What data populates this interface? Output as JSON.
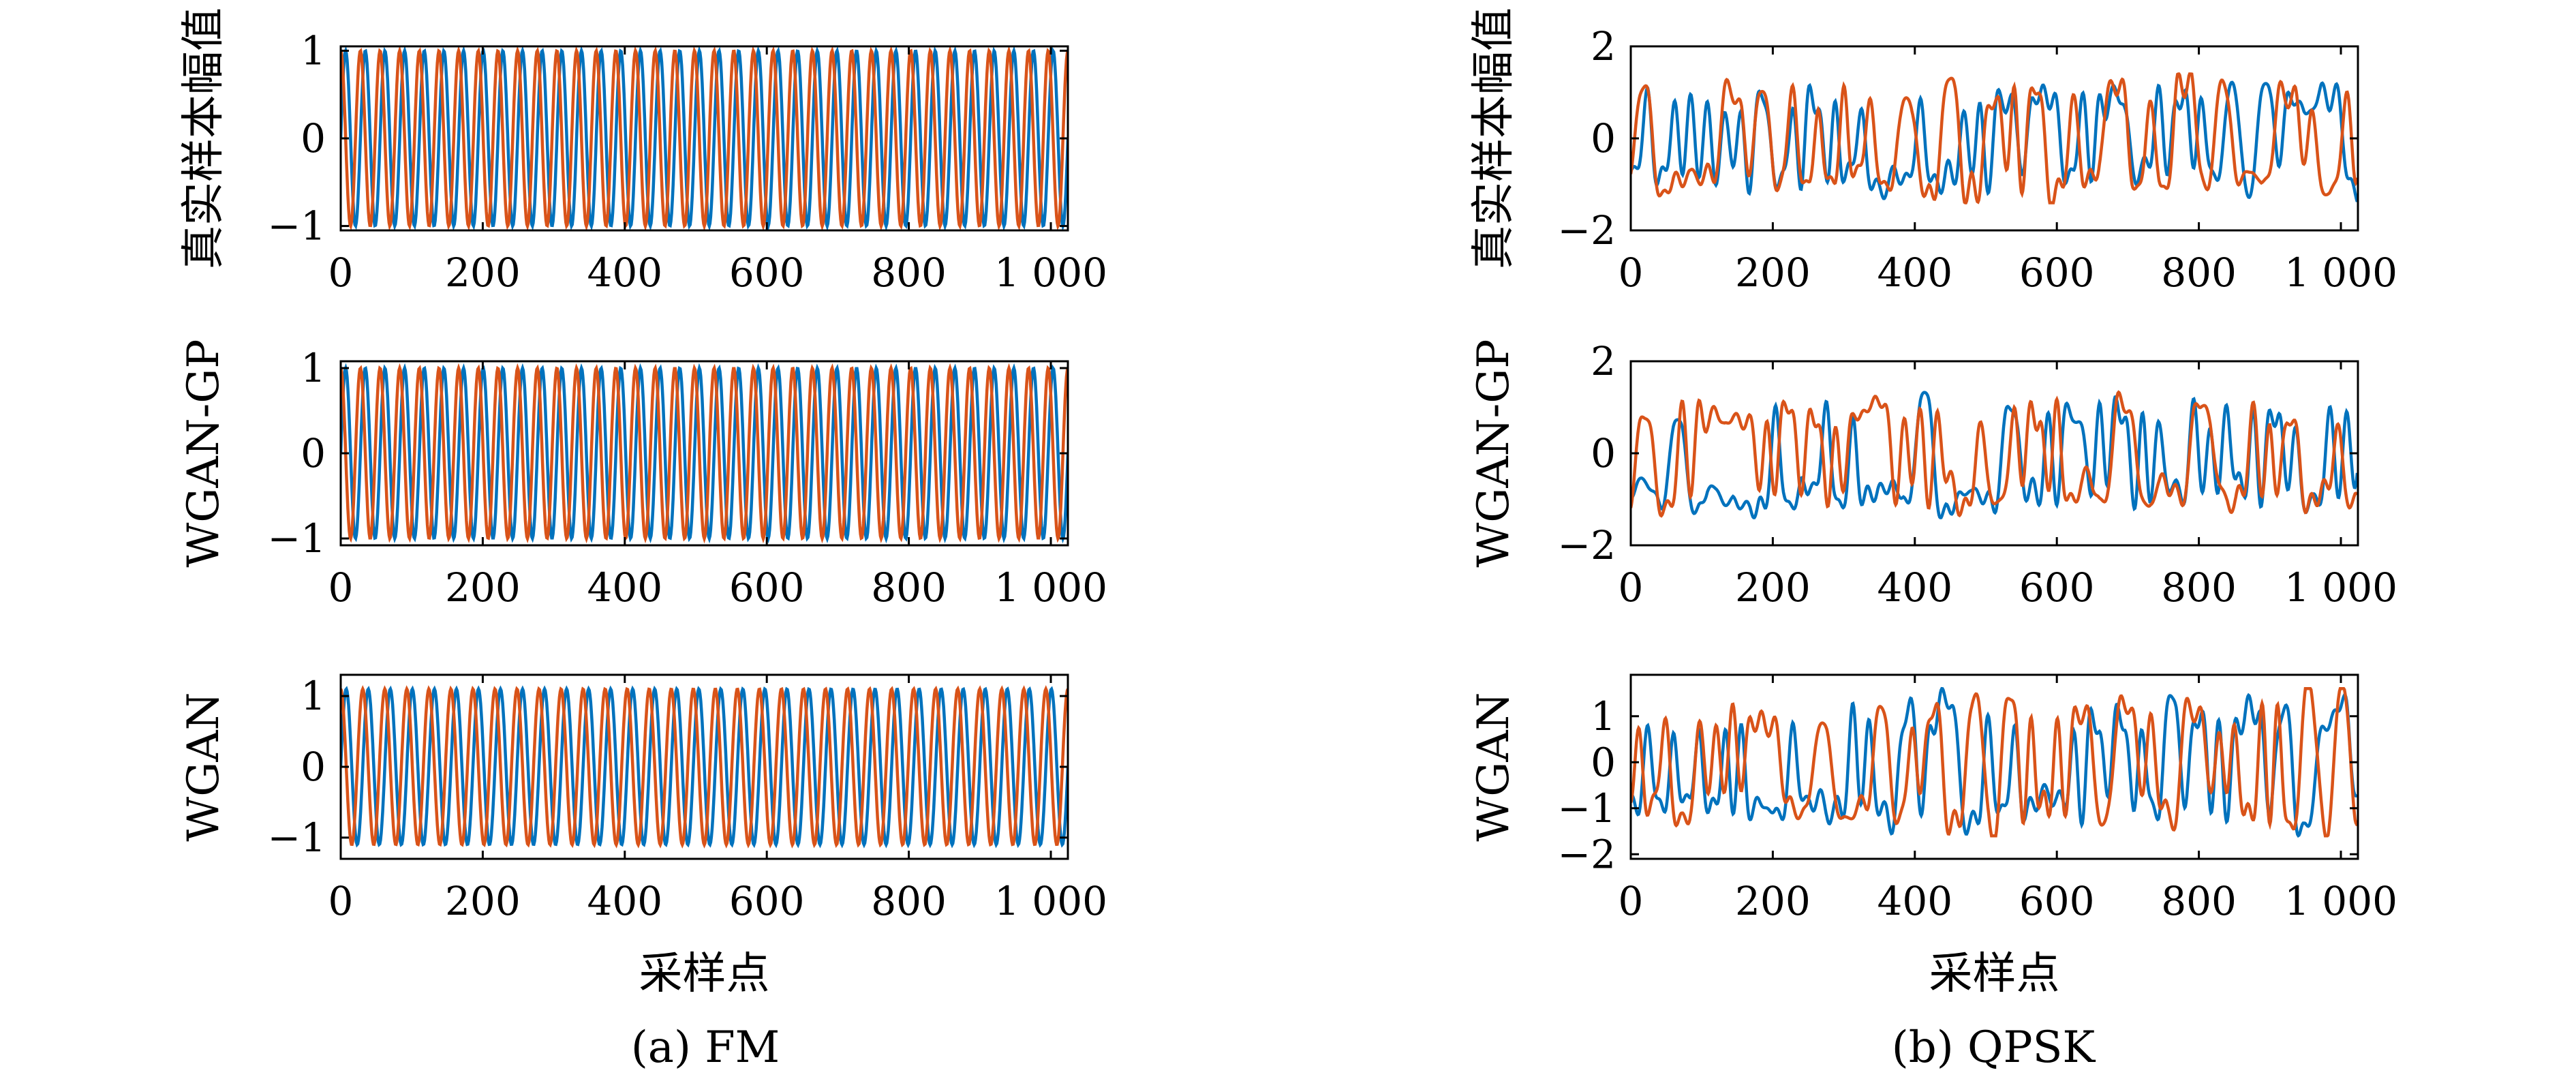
{
  "figure": {
    "captions": [
      "(a) FM",
      "(b) QPSK"
    ]
  },
  "chart_data": [
    {
      "type": "line",
      "column": "(a) FM",
      "ylabel": "真实样本幅值",
      "xlabel": "",
      "xlim": [
        0,
        1024
      ],
      "ylim": [
        -1.05,
        1.05
      ],
      "xticks": [
        0,
        200,
        400,
        600,
        800,
        1000
      ],
      "xtick_labels": [
        "0",
        "200",
        "400",
        "600",
        "800",
        "1 000"
      ],
      "yticks": [
        -1,
        0,
        1
      ],
      "ytick_labels": [
        "−1",
        "0",
        "1"
      ],
      "signal": "sinusoid",
      "cycles": 37,
      "amplitude": 1.0,
      "series": [
        {
          "color": "#0072BD",
          "phase_deg": 0
        },
        {
          "color": "#D95319",
          "phase_deg": 90
        }
      ]
    },
    {
      "type": "line",
      "column": "(a) FM",
      "ylabel": "WGAN-GP",
      "xlabel": "",
      "xlim": [
        0,
        1024
      ],
      "ylim": [
        -1.08,
        1.08
      ],
      "xticks": [
        0,
        200,
        400,
        600,
        800,
        1000
      ],
      "xtick_labels": [
        "0",
        "200",
        "400",
        "600",
        "800",
        "1 000"
      ],
      "yticks": [
        -1,
        0,
        1
      ],
      "ytick_labels": [
        "−1",
        "0",
        "1"
      ],
      "signal": "sinusoid",
      "cycles": 37,
      "amplitude": 1.0,
      "series": [
        {
          "color": "#0072BD",
          "phase_deg": 0
        },
        {
          "color": "#D95319",
          "phase_deg": 90
        }
      ]
    },
    {
      "type": "line",
      "column": "(a) FM",
      "ylabel": "WGAN",
      "xlabel": "采样点",
      "xlim": [
        0,
        1024
      ],
      "ylim": [
        -1.3,
        1.3
      ],
      "xticks": [
        0,
        200,
        400,
        600,
        800,
        1000
      ],
      "xtick_labels": [
        "0",
        "200",
        "400",
        "600",
        "800",
        "1 000"
      ],
      "yticks": [
        -1,
        0,
        1
      ],
      "ytick_labels": [
        "−1",
        "0",
        "1"
      ],
      "signal": "sinusoid",
      "cycles": 33,
      "amplitude": 1.1,
      "series": [
        {
          "color": "#0072BD",
          "phase_deg": 0
        },
        {
          "color": "#D95319",
          "phase_deg": 90
        }
      ]
    },
    {
      "type": "line",
      "column": "(b) QPSK",
      "ylabel": "真实样本幅值",
      "xlabel": "",
      "xlim": [
        0,
        1024
      ],
      "ylim": [
        -2,
        2
      ],
      "xticks": [
        0,
        200,
        400,
        600,
        800,
        1000
      ],
      "xtick_labels": [
        "0",
        "200",
        "400",
        "600",
        "800",
        "1 000"
      ],
      "yticks": [
        -2,
        0,
        2
      ],
      "ytick_labels": [
        "−2",
        "0",
        "2"
      ],
      "signal": "random-baseband",
      "amplitude": 1.4,
      "series": [
        {
          "color": "#0072BD",
          "seed": 11
        },
        {
          "color": "#D95319",
          "seed": 23
        }
      ]
    },
    {
      "type": "line",
      "column": "(b) QPSK",
      "ylabel": "WGAN-GP",
      "xlabel": "",
      "xlim": [
        0,
        1024
      ],
      "ylim": [
        -2,
        2
      ],
      "xticks": [
        0,
        200,
        400,
        600,
        800,
        1000
      ],
      "xtick_labels": [
        "0",
        "200",
        "400",
        "600",
        "800",
        "1 000"
      ],
      "yticks": [
        -2,
        0,
        2
      ],
      "ytick_labels": [
        "−2",
        "0",
        "2"
      ],
      "signal": "random-baseband",
      "amplitude": 1.4,
      "series": [
        {
          "color": "#0072BD",
          "seed": 37
        },
        {
          "color": "#D95319",
          "seed": 41
        }
      ]
    },
    {
      "type": "line",
      "column": "(b) QPSK",
      "ylabel": "WGAN",
      "xlabel": "采样点",
      "xlim": [
        0,
        1024
      ],
      "ylim": [
        -2.1,
        1.9
      ],
      "xticks": [
        0,
        200,
        400,
        600,
        800,
        1000
      ],
      "xtick_labels": [
        "0",
        "200",
        "400",
        "600",
        "800",
        "1 000"
      ],
      "yticks": [
        -2,
        -1,
        0,
        1
      ],
      "ytick_labels": [
        "−2",
        "−1",
        "0",
        "1"
      ],
      "signal": "random-baseband",
      "amplitude": 1.6,
      "series": [
        {
          "color": "#0072BD",
          "seed": 53
        },
        {
          "color": "#D95319",
          "seed": 67
        }
      ]
    }
  ]
}
